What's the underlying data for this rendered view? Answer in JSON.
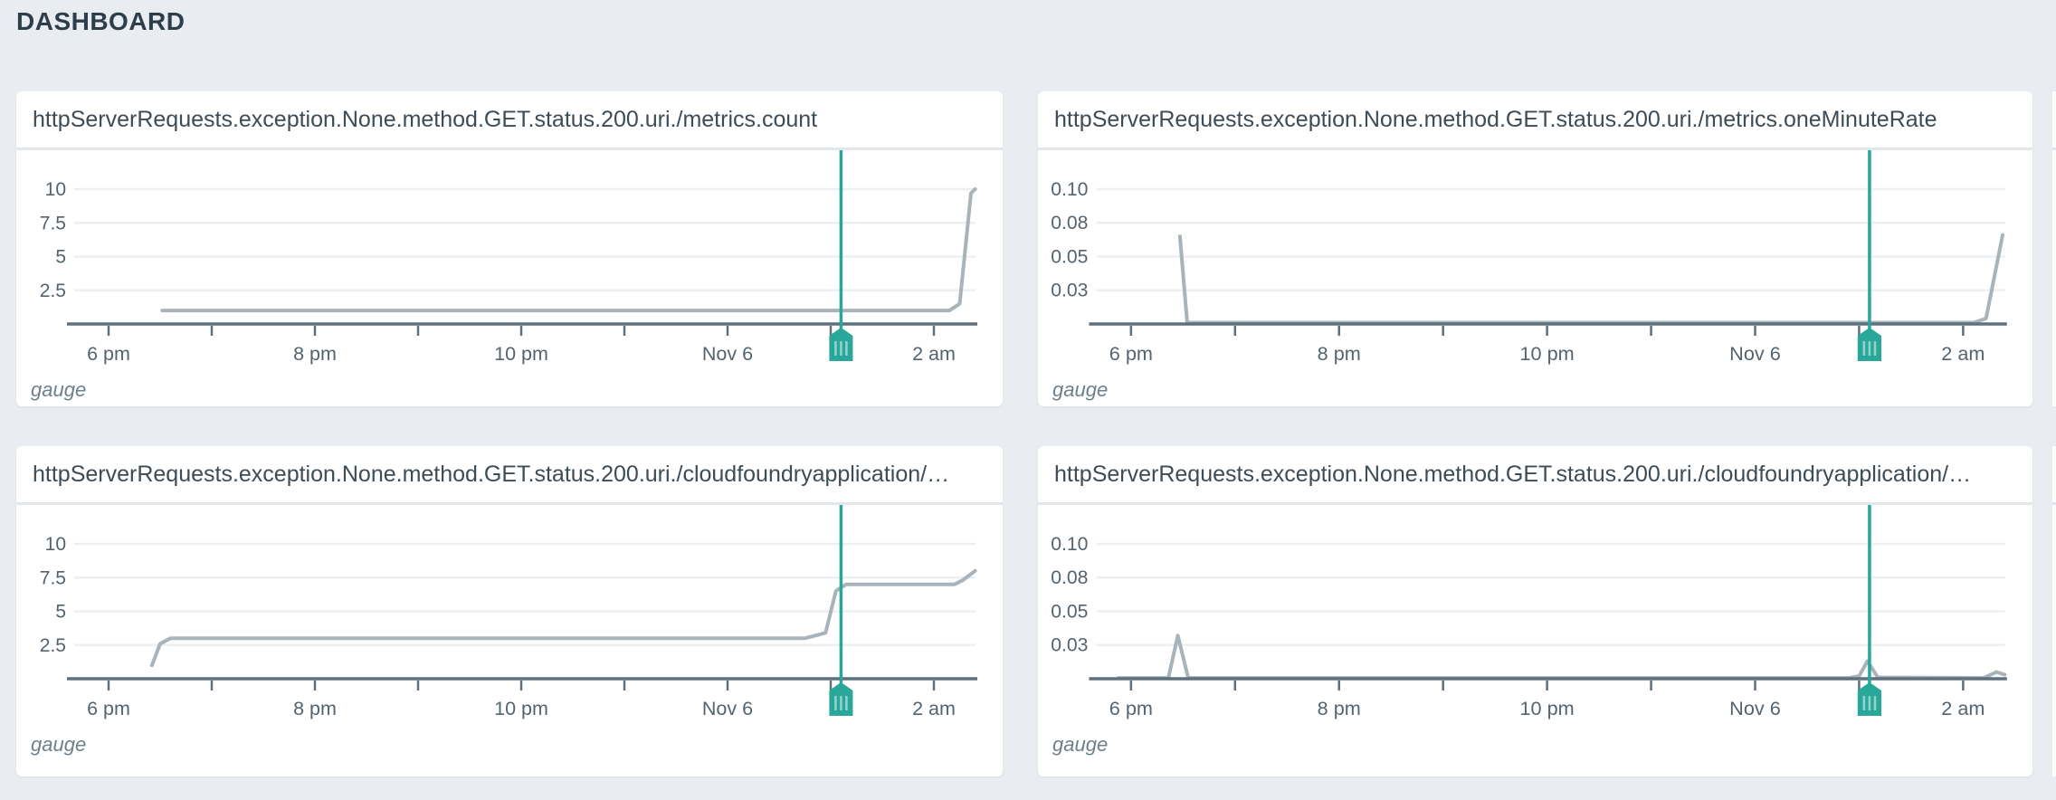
{
  "page": {
    "heading": "DASHBOARD"
  },
  "colors": {
    "background": "#e9edf1",
    "card": "#ffffff",
    "accent_teal": "#29a79b",
    "data_line": "#a9b3ba",
    "axis": "#5f707e",
    "gridline": "#edf0f2",
    "tick_text": "#54646f",
    "panel_title_text": "#3e4c56",
    "gauge_text": "#6d808b",
    "heading_text": "#2d3e4b",
    "divider": "#e4e7ea",
    "flag_grip": "rgba(255,255,255,0.5)"
  },
  "panels": [
    {
      "title": "httpServerRequests.exception.None.method.GET.status.200.uri./metrics.count",
      "footer_label": "gauge"
    },
    {
      "title": "httpServerRequests.exception.None.method.GET.status.200.uri./metrics.oneMinuteRate",
      "footer_label": "gauge"
    },
    {
      "title": "httpServerRequests.exception.None.method.GET.status.200.uri./cloudfoundryapplication/…",
      "footer_label": "gauge"
    },
    {
      "title": "httpServerRequests.exception.None.method.GET.status.200.uri./cloudfoundryapplication/…",
      "footer_label": "gauge"
    }
  ],
  "chart_data": [
    {
      "type": "line",
      "title": "httpServerRequests.exception.None.method.GET.status.200.uri./metrics.count",
      "xlabel": "",
      "ylabel": "",
      "grid": true,
      "legend_position": "none",
      "x_unit": "hours_after_6pm",
      "xlim": [
        -0.33,
        8.4
      ],
      "ylim": [
        0,
        12.9
      ],
      "xticks": [
        {
          "label": "6 pm",
          "h": 0
        },
        {
          "label": "8 pm",
          "h": 2
        },
        {
          "label": "10 pm",
          "h": 4
        },
        {
          "label": "Nov 6",
          "h": 6
        },
        {
          "label": "2 am",
          "h": 8
        }
      ],
      "minor_tick_hours": [
        0,
        1,
        2,
        3,
        4,
        5,
        6,
        7,
        8
      ],
      "yticks": [
        {
          "label": "2.5",
          "value": 2.5
        },
        {
          "label": "5",
          "value": 5
        },
        {
          "label": "7.5",
          "value": 7.5
        },
        {
          "label": "10",
          "value": 10
        }
      ],
      "cursor_h": 7.1,
      "series": [
        {
          "name": "gauge",
          "points": [
            [
              0.52,
              1
            ],
            [
              8.15,
              1
            ],
            [
              8.25,
              1.5
            ],
            [
              8.36,
              9.7
            ],
            [
              8.4,
              10
            ]
          ]
        }
      ]
    },
    {
      "type": "line",
      "title": "httpServerRequests.exception.None.method.GET.status.200.uri./metrics.oneMinuteRate",
      "xlabel": "",
      "ylabel": "",
      "grid": true,
      "legend_position": "none",
      "x_unit": "hours_after_6pm",
      "xlim": [
        -0.33,
        8.4
      ],
      "ylim": [
        0,
        0.129
      ],
      "xticks": [
        {
          "label": "6 pm",
          "h": 0
        },
        {
          "label": "8 pm",
          "h": 2
        },
        {
          "label": "10 pm",
          "h": 4
        },
        {
          "label": "Nov 6",
          "h": 6
        },
        {
          "label": "2 am",
          "h": 8
        }
      ],
      "minor_tick_hours": [
        0,
        1,
        2,
        3,
        4,
        5,
        6,
        7,
        8
      ],
      "yticks": [
        {
          "label": "0.03",
          "value": 0.025
        },
        {
          "label": "0.05",
          "value": 0.05
        },
        {
          "label": "0.08",
          "value": 0.075
        },
        {
          "label": "0.10",
          "value": 0.1
        }
      ],
      "cursor_h": 7.1,
      "series": [
        {
          "name": "gauge",
          "points": [
            [
              0.47,
              0.065
            ],
            [
              0.54,
              0.001
            ],
            [
              8.1,
              0.001
            ],
            [
              8.22,
              0.004
            ],
            [
              8.38,
              0.066
            ]
          ]
        }
      ]
    },
    {
      "type": "line",
      "title": "httpServerRequests.exception.None.method.GET.status.200.uri./cloudfoundryapplication/…",
      "xlabel": "",
      "ylabel": "",
      "grid": true,
      "legend_position": "none",
      "x_unit": "hours_after_6pm",
      "xlim": [
        -0.33,
        8.4
      ],
      "ylim": [
        0,
        12.9
      ],
      "xticks": [
        {
          "label": "6 pm",
          "h": 0
        },
        {
          "label": "8 pm",
          "h": 2
        },
        {
          "label": "10 pm",
          "h": 4
        },
        {
          "label": "Nov 6",
          "h": 6
        },
        {
          "label": "2 am",
          "h": 8
        }
      ],
      "minor_tick_hours": [
        0,
        1,
        2,
        3,
        4,
        5,
        6,
        7,
        8
      ],
      "yticks": [
        {
          "label": "2.5",
          "value": 2.5
        },
        {
          "label": "5",
          "value": 5
        },
        {
          "label": "7.5",
          "value": 7.5
        },
        {
          "label": "10",
          "value": 10
        }
      ],
      "cursor_h": 7.1,
      "series": [
        {
          "name": "gauge",
          "points": [
            [
              0.42,
              1
            ],
            [
              0.5,
              2.6
            ],
            [
              0.6,
              3
            ],
            [
              6.75,
              3
            ],
            [
              6.95,
              3.4
            ],
            [
              7.05,
              6.5
            ],
            [
              7.15,
              7
            ],
            [
              8.2,
              7
            ],
            [
              8.28,
              7.3
            ],
            [
              8.4,
              8
            ]
          ]
        }
      ]
    },
    {
      "type": "line",
      "title": "httpServerRequests.exception.None.method.GET.status.200.uri./cloudfoundryapplication/…",
      "xlabel": "",
      "ylabel": "",
      "grid": true,
      "legend_position": "none",
      "x_unit": "hours_after_6pm",
      "xlim": [
        -0.33,
        8.4
      ],
      "ylim": [
        0,
        0.129
      ],
      "xticks": [
        {
          "label": "6 pm",
          "h": 0
        },
        {
          "label": "8 pm",
          "h": 2
        },
        {
          "label": "10 pm",
          "h": 4
        },
        {
          "label": "Nov 6",
          "h": 6
        },
        {
          "label": "2 am",
          "h": 8
        }
      ],
      "minor_tick_hours": [
        0,
        1,
        2,
        3,
        4,
        5,
        6,
        7,
        8
      ],
      "yticks": [
        {
          "label": "0.03",
          "value": 0.025
        },
        {
          "label": "0.05",
          "value": 0.05
        },
        {
          "label": "0.08",
          "value": 0.075
        },
        {
          "label": "0.10",
          "value": 0.1
        }
      ],
      "cursor_h": 7.1,
      "series": [
        {
          "name": "gauge",
          "points": [
            [
              -0.12,
              0.0006
            ],
            [
              0.36,
              0.0006
            ],
            [
              0.45,
              0.032
            ],
            [
              0.55,
              0.0006
            ],
            [
              6.9,
              0.0006
            ],
            [
              7.0,
              0.002
            ],
            [
              7.08,
              0.013
            ],
            [
              7.18,
              0.001
            ],
            [
              8.2,
              0.0006
            ],
            [
              8.32,
              0.005
            ],
            [
              8.4,
              0.003
            ]
          ]
        }
      ]
    }
  ]
}
